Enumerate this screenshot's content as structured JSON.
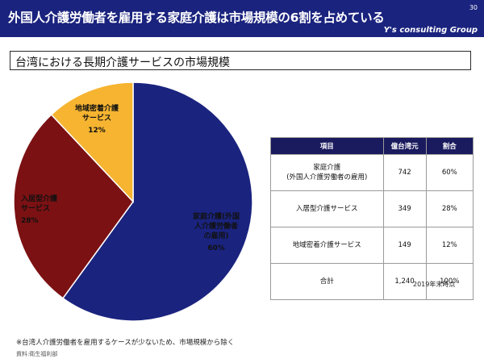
{
  "header": {
    "title": "外国人介護労働者を雇用する家庭介護は市場規模の6割を占めている",
    "page_number": "30",
    "brand": "Y's consulting Group"
  },
  "section": {
    "title": "台湾における長期介護サービスの市場規模"
  },
  "chart_data": {
    "type": "pie",
    "title": "",
    "slices": [
      {
        "label_lines": [
          "家庭介護(外国",
          "人介護労働者",
          "の雇用)"
        ],
        "value": 60,
        "pct_text": "60%",
        "color": "#1a237e"
      },
      {
        "label_lines": [
          "入居型介護",
          "サービス"
        ],
        "value": 28,
        "pct_text": "28%",
        "color": "#7b1113"
      },
      {
        "label_lines": [
          "地域密着介護",
          "サービス"
        ],
        "value": 12,
        "pct_text": "12%",
        "color": "#f6b431"
      }
    ]
  },
  "table": {
    "headers": [
      "項目",
      "億台湾元",
      "割合"
    ],
    "rows": [
      {
        "item_lines": [
          "家庭介護",
          "(外国人介護労働者の雇用)"
        ],
        "value": "742",
        "pct": "60%"
      },
      {
        "item_lines": [
          "入居型介護サービス"
        ],
        "value": "349",
        "pct": "28%"
      },
      {
        "item_lines": [
          "地域密着介護サービス"
        ],
        "value": "149",
        "pct": "12%"
      },
      {
        "item_lines": [
          "合計"
        ],
        "value": "1,240",
        "pct": "100%"
      }
    ]
  },
  "as_of": "2019年末時点",
  "footnote": "※台湾人介護労働者を雇用するケースが少ないため、市場規模から除く",
  "source": "資料:衛生福利部"
}
